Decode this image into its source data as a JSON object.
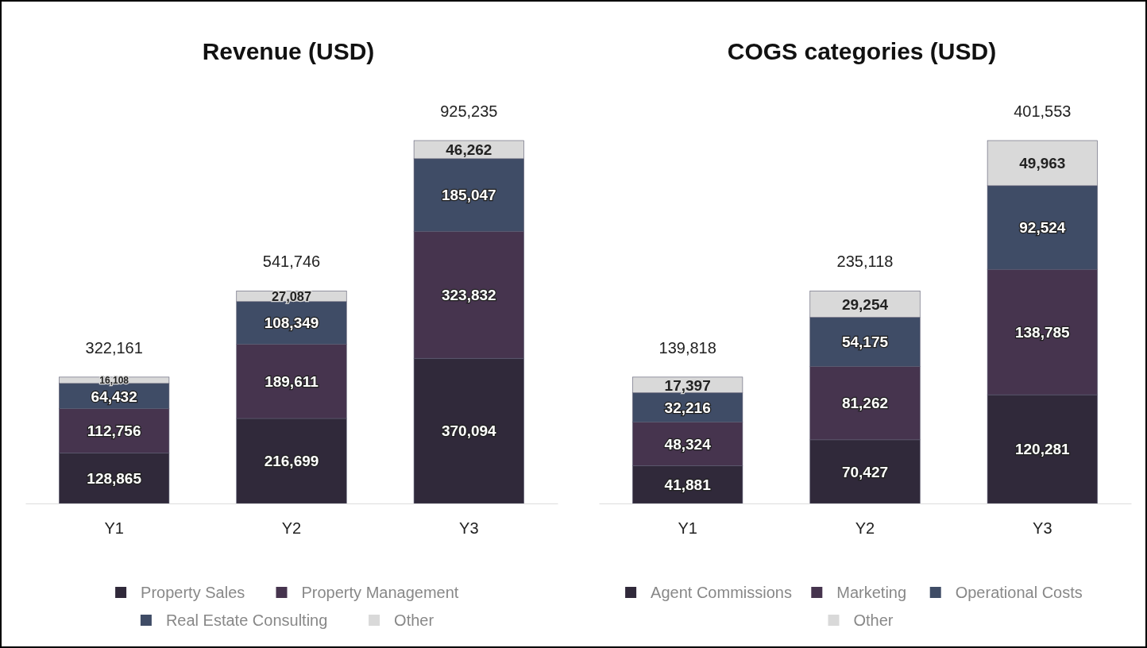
{
  "chart_data": [
    {
      "type": "bar",
      "title": "Revenue (USD)",
      "categories": [
        "Y1",
        "Y2",
        "Y3"
      ],
      "stacked": true,
      "legend": "bottom",
      "series": [
        {
          "name": "Property Sales",
          "color": "#30293a",
          "values": [
            128865,
            216699,
            370094
          ],
          "value_labels": [
            "128,865",
            "216,699",
            "370,094"
          ]
        },
        {
          "name": "Property Management",
          "color": "#46344e",
          "values": [
            112756,
            189611,
            323832
          ],
          "value_labels": [
            "112,756",
            "189,611",
            "323,832"
          ]
        },
        {
          "name": "Real Estate Consulting",
          "color": "#3f4c66",
          "values": [
            64432,
            108349,
            185047
          ],
          "value_labels": [
            "64,432",
            "108,349",
            "185,047"
          ]
        },
        {
          "name": "Other",
          "color": "#d9d9d9",
          "values": [
            16108,
            27087,
            46262
          ],
          "value_labels": [
            "16,108",
            "27,087",
            "46,262"
          ]
        }
      ],
      "totals": [
        "322,161",
        "541,746",
        "925,235"
      ]
    },
    {
      "type": "bar",
      "title": "COGS categories (USD)",
      "categories": [
        "Y1",
        "Y2",
        "Y3"
      ],
      "stacked": true,
      "legend": "bottom",
      "series": [
        {
          "name": "Agent Commissions",
          "color": "#30293a",
          "values": [
            41881,
            70427,
            120281
          ],
          "value_labels": [
            "41,881",
            "70,427",
            "120,281"
          ]
        },
        {
          "name": "Marketing",
          "color": "#46344e",
          "values": [
            48324,
            81262,
            138785
          ],
          "value_labels": [
            "48,324",
            "81,262",
            "138,785"
          ]
        },
        {
          "name": "Operational Costs",
          "color": "#3f4c66",
          "values": [
            32216,
            54175,
            92524
          ],
          "value_labels": [
            "32,216",
            "54,175",
            "92,524"
          ]
        },
        {
          "name": "Other",
          "color": "#d9d9d9",
          "values": [
            17397,
            29254,
            49963
          ],
          "value_labels": [
            "17,397",
            "29,254",
            "49,963"
          ]
        }
      ],
      "totals": [
        "139,818",
        "235,118",
        "401,553"
      ]
    }
  ]
}
